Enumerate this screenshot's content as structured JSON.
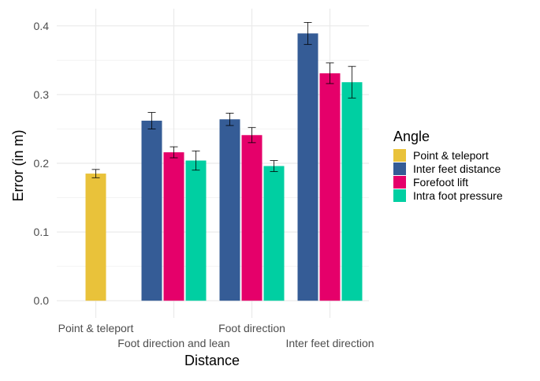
{
  "chart_data": {
    "type": "bar",
    "xlabel": "Distance",
    "ylabel": "Error (in m)",
    "ylim": [
      -0.025,
      0.425
    ],
    "yticks": [
      0.0,
      0.1,
      0.2,
      0.3,
      0.4
    ],
    "ytick_labels": [
      "0.0",
      "0.1",
      "0.2",
      "0.3",
      "0.4"
    ],
    "categories": [
      "Point & teleport",
      "Foot direction and lean",
      "Foot direction",
      "Inter feet direction"
    ],
    "legend": {
      "title": "Angle",
      "position": "right"
    },
    "grid": true,
    "series": [
      {
        "name": "Point & teleport",
        "color": "#E9C23A",
        "values": [
          0.185,
          null,
          null,
          null
        ],
        "errors": [
          0.006,
          null,
          null,
          null
        ]
      },
      {
        "name": "Inter feet distance",
        "color": "#355C96",
        "values": [
          null,
          0.262,
          0.264,
          0.389
        ],
        "errors": [
          null,
          0.012,
          0.009,
          0.016
        ]
      },
      {
        "name": "Forefoot lift",
        "color": "#E5006A",
        "values": [
          null,
          0.216,
          0.241,
          0.331
        ],
        "errors": [
          null,
          0.008,
          0.011,
          0.015
        ]
      },
      {
        "name": "Intra foot pressure",
        "color": "#00CFA2",
        "values": [
          null,
          0.204,
          0.196,
          0.318
        ],
        "errors": [
          null,
          0.014,
          0.008,
          0.023
        ]
      }
    ]
  }
}
